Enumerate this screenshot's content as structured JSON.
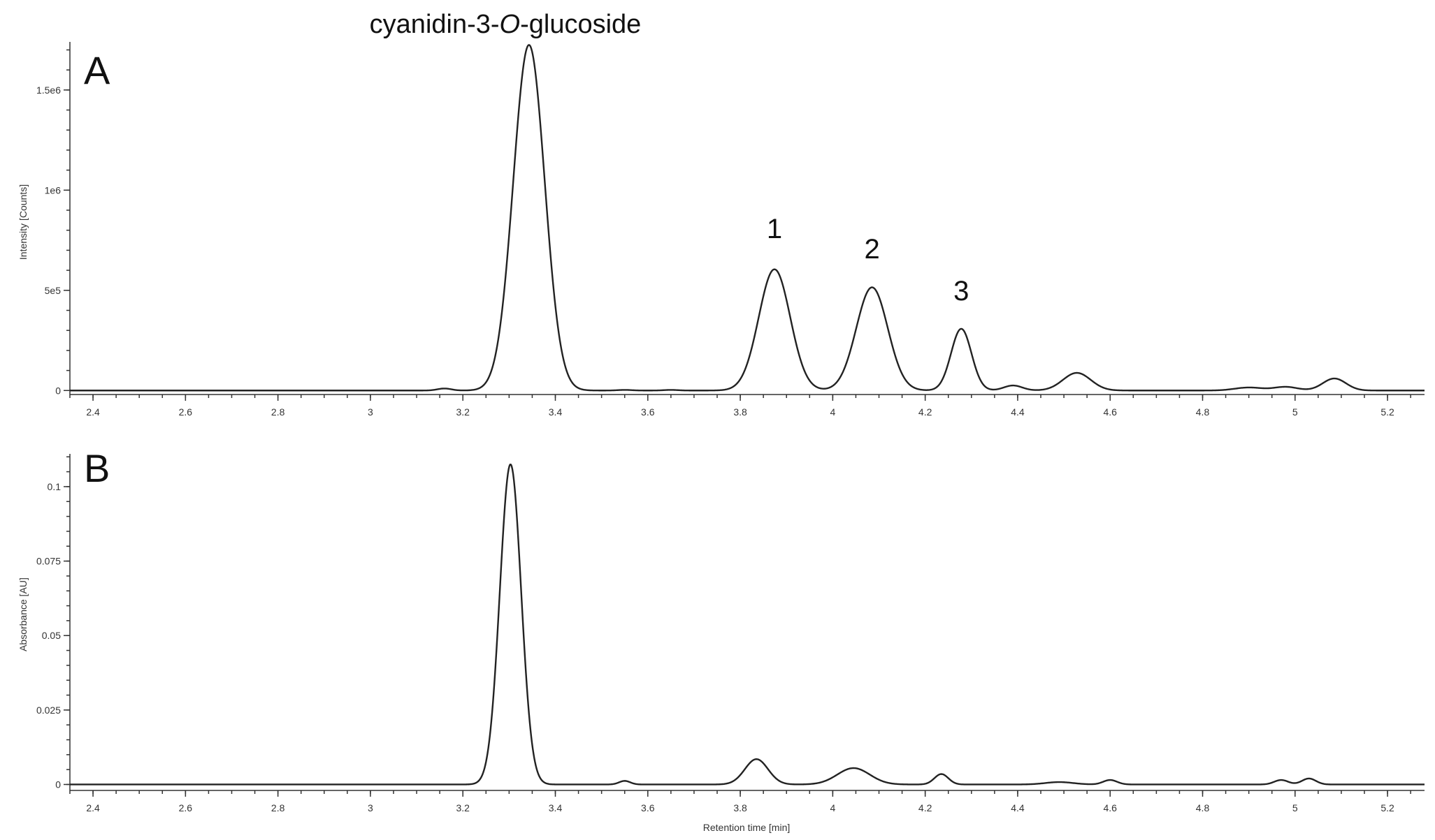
{
  "chart_data": [
    {
      "panel": "A",
      "type": "line",
      "title": "cyanidin-3-O-glucoside",
      "title_plain": "cyanidin-3-",
      "title_italic": "O",
      "title_suffix": "-glucoside",
      "xlabel": "",
      "ylabel": "Intensity [Counts]",
      "xlim": [
        2.35,
        5.28
      ],
      "ylim": [
        -20000,
        1740000
      ],
      "x_ticks": [
        2.4,
        2.6,
        2.8,
        3,
        3.2,
        3.4,
        3.6,
        3.8,
        4,
        4.2,
        4.4,
        4.6,
        4.8,
        5,
        5.2
      ],
      "x_tick_labels": [
        "2.4",
        "2.6",
        "2.8",
        "3",
        "3.2",
        "3.4",
        "3.6",
        "3.8",
        "4",
        "4.2",
        "4.4",
        "4.6",
        "4.8",
        "5",
        "5.2"
      ],
      "y_ticks": [
        0,
        500000,
        1000000,
        1500000
      ],
      "y_tick_labels": [
        "0",
        "5e5",
        "1e6",
        "1.5e6"
      ],
      "baseline": 0,
      "peaks": [
        {
          "rt": 3.16,
          "height": 10000,
          "width": 0.015
        },
        {
          "rt": 3.343,
          "height": 1725000,
          "width": 0.034
        },
        {
          "rt": 3.55,
          "height": 3000,
          "width": 0.015
        },
        {
          "rt": 3.65,
          "height": 3000,
          "width": 0.015
        },
        {
          "rt": 3.874,
          "height": 605000,
          "width": 0.034
        },
        {
          "rt": 4.085,
          "height": 515000,
          "width": 0.034
        },
        {
          "rt": 4.278,
          "height": 308000,
          "width": 0.022
        },
        {
          "rt": 4.39,
          "height": 25000,
          "width": 0.02
        },
        {
          "rt": 4.528,
          "height": 88000,
          "width": 0.03
        },
        {
          "rt": 4.9,
          "height": 15000,
          "width": 0.03
        },
        {
          "rt": 4.98,
          "height": 18000,
          "width": 0.025
        },
        {
          "rt": 5.085,
          "height": 60000,
          "width": 0.025
        }
      ],
      "peak_labels": [
        {
          "text": "1",
          "x": 3.874,
          "y": 760000
        },
        {
          "text": "2",
          "x": 4.085,
          "y": 660000
        },
        {
          "text": "3",
          "x": 4.278,
          "y": 450000
        }
      ]
    },
    {
      "panel": "B",
      "type": "line",
      "title": "",
      "xlabel": "Retention time [min]",
      "ylabel": "Absorbance [AU]",
      "xlim": [
        2.35,
        5.28
      ],
      "ylim": [
        -0.002,
        0.111
      ],
      "x_ticks": [
        2.4,
        2.6,
        2.8,
        3,
        3.2,
        3.4,
        3.6,
        3.8,
        4,
        4.2,
        4.4,
        4.6,
        4.8,
        5,
        5.2
      ],
      "x_tick_labels": [
        "2.4",
        "2.6",
        "2.8",
        "3",
        "3.2",
        "3.4",
        "3.6",
        "3.8",
        "4",
        "4.2",
        "4.4",
        "4.6",
        "4.8",
        "5",
        "5.2"
      ],
      "y_ticks": [
        0,
        0.025,
        0.05,
        0.075,
        0.1
      ],
      "y_tick_labels": [
        "0",
        "0.025",
        "0.05",
        "0.075",
        "0.1"
      ],
      "baseline": 0,
      "peaks": [
        {
          "rt": 3.303,
          "height": 0.1075,
          "width": 0.023
        },
        {
          "rt": 3.55,
          "height": 0.0012,
          "width": 0.012
        },
        {
          "rt": 3.835,
          "height": 0.0085,
          "width": 0.025
        },
        {
          "rt": 4.045,
          "height": 0.0055,
          "width": 0.035
        },
        {
          "rt": 4.235,
          "height": 0.0035,
          "width": 0.015
        },
        {
          "rt": 4.49,
          "height": 0.0008,
          "width": 0.03
        },
        {
          "rt": 4.6,
          "height": 0.0015,
          "width": 0.015
        },
        {
          "rt": 4.97,
          "height": 0.0015,
          "width": 0.015
        },
        {
          "rt": 5.03,
          "height": 0.002,
          "width": 0.015
        }
      ],
      "peak_labels": []
    }
  ],
  "panels_meta": {
    "legend": "none",
    "grid": false
  }
}
